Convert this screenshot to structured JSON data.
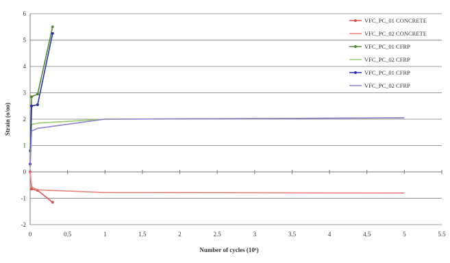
{
  "chart_data": {
    "type": "line",
    "xlabel": "Number of cycles (10⁶)",
    "ylabel": "Strain (o/oo)",
    "xlim": [
      0,
      5.5
    ],
    "ylim": [
      -2,
      6
    ],
    "xticks": [
      0,
      0.5,
      1,
      1.5,
      2,
      2.5,
      3,
      3.5,
      4,
      4.5,
      5,
      5.5
    ],
    "yticks": [
      -2,
      -1,
      0,
      1,
      2,
      3,
      4,
      5,
      6
    ],
    "xtick_labels": [
      "0",
      "0.5",
      "1",
      "1.5",
      "2",
      "2.5",
      "3",
      "3.5",
      "4",
      "4.5",
      "5",
      "5.5"
    ],
    "ytick_labels": [
      "-2",
      "-1",
      "0",
      "1",
      "2",
      "3",
      "4",
      "5",
      "6"
    ],
    "grid": "horizontal",
    "legend_position": "right",
    "series": [
      {
        "name": "VFC_PC_01 CONCRETE",
        "color": "#d9534f",
        "marker": true,
        "x": [
          0,
          0.02,
          0.1,
          0.3
        ],
        "y": [
          0,
          -0.65,
          -0.7,
          -1.15
        ]
      },
      {
        "name": "VFC_PC_02 CONCRETE",
        "color": "#e8847f",
        "marker": false,
        "x": [
          0,
          0.02,
          0.05,
          0.1,
          1,
          5
        ],
        "y": [
          0,
          -0.55,
          -0.62,
          -0.68,
          -0.78,
          -0.8
        ]
      },
      {
        "name": "VFC_PC_01 CFRP",
        "color": "#4e8a2e",
        "marker": true,
        "x": [
          0,
          0.02,
          0.1,
          0.3
        ],
        "y": [
          0.8,
          2.85,
          2.95,
          5.5
        ]
      },
      {
        "name": "VFC_PC_02 CFRP",
        "color": "#9ccc6a",
        "marker": false,
        "x": [
          0,
          0.02,
          0.1,
          1,
          5
        ],
        "y": [
          0.5,
          1.8,
          1.85,
          2.0,
          2.05
        ]
      },
      {
        "name": "VFC_PC_01 CFRP",
        "color": "#2b2bb0",
        "marker": true,
        "x": [
          0,
          0.02,
          0.1,
          0.3
        ],
        "y": [
          0.3,
          2.5,
          2.55,
          5.25
        ]
      },
      {
        "name": "VFC_PC_02 CFRP",
        "color": "#8a80cf",
        "marker": false,
        "x": [
          0,
          0.02,
          0.1,
          1,
          5
        ],
        "y": [
          0.2,
          1.55,
          1.65,
          2.0,
          2.05
        ]
      }
    ]
  }
}
